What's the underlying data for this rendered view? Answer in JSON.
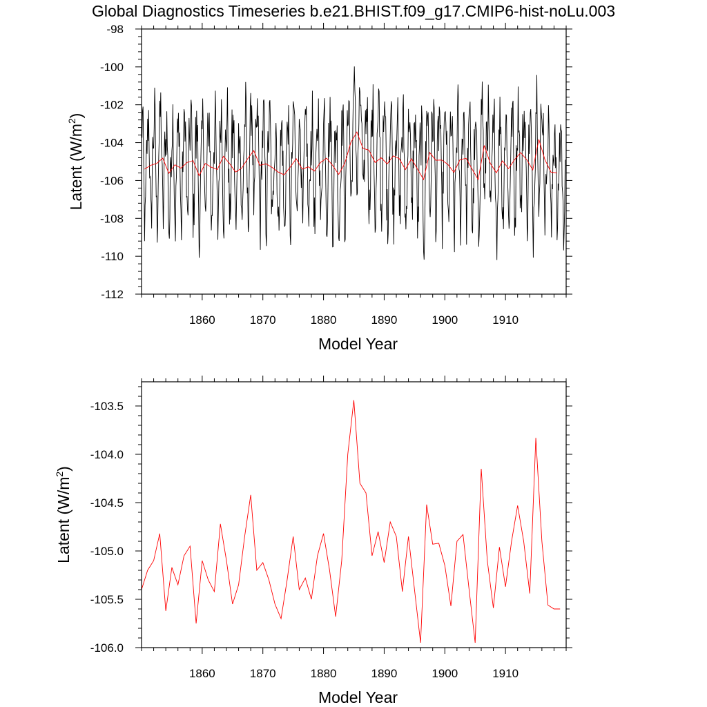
{
  "title": "Global Diagnostics Timeseries b.e21.BHIST.f09_g17.CMIP6-hist-noLu.003",
  "chart_data": [
    {
      "type": "line",
      "xlabel": "Model Year",
      "ylabel_main": "Latent (W/m",
      "ylabel_sup": "2",
      "ylabel_tail": ")",
      "xlim": [
        1850,
        1920
      ],
      "ylim": [
        -112,
        -98
      ],
      "xticks": [
        1860,
        1870,
        1880,
        1890,
        1900,
        1910
      ],
      "xtick_labels": [
        "1860",
        "1870",
        "1880",
        "1890",
        "1900",
        "1910"
      ],
      "yticks": [
        -112,
        -110,
        -108,
        -106,
        -104,
        -102,
        -100,
        -98
      ],
      "ytick_labels": [
        "-112",
        "-110",
        "-108",
        "-106",
        "-104",
        "-102",
        "-100",
        "-98"
      ],
      "series": [
        {
          "kind": "monthly",
          "color": "#000000",
          "x_start": 1850,
          "x_step": 0.0833333,
          "note_values": "monthly values (generated series shape, representative)",
          "values": []
        },
        {
          "kind": "annual",
          "color": "#ff0000",
          "x": [
            1850.5,
            1851.5,
            1852.5,
            1853.5,
            1854.5,
            1855.5,
            1856.5,
            1857.5,
            1858.5,
            1859.5,
            1860.5,
            1861.5,
            1862.5,
            1863.5,
            1864.5,
            1865.5,
            1866.5,
            1867.5,
            1868.5,
            1869.5,
            1870.5,
            1871.5,
            1872.5,
            1873.5,
            1874.5,
            1875.5,
            1876.5,
            1877.5,
            1878.5,
            1879.5,
            1880.5,
            1881.5,
            1882.5,
            1883.5,
            1884.5,
            1885.5,
            1886.5,
            1887.5,
            1888.5,
            1889.5,
            1890.5,
            1891.5,
            1892.5,
            1893.5,
            1894.5,
            1895.5,
            1896.5,
            1897.5,
            1898.5,
            1899.5,
            1900.5,
            1901.5,
            1902.5,
            1903.5,
            1904.5,
            1905.5,
            1906.5,
            1907.5,
            1908.5,
            1909.5,
            1910.5,
            1911.5,
            1912.5,
            1913.5,
            1914.5,
            1915.5,
            1916.5,
            1917.5,
            1918.5
          ],
          "values": [
            -105.4,
            -105.2,
            -105.1,
            -104.82,
            -105.62,
            -105.17,
            -105.35,
            -105.05,
            -104.95,
            -105.75,
            -105.1,
            -105.3,
            -105.42,
            -104.72,
            -105.1,
            -105.55,
            -105.35,
            -104.85,
            -104.42,
            -105.2,
            -105.12,
            -105.3,
            -105.55,
            -105.7,
            -105.3,
            -104.85,
            -105.4,
            -105.28,
            -105.5,
            -105.05,
            -104.82,
            -105.2,
            -105.68,
            -105.1,
            -104.0,
            -103.44,
            -104.3,
            -104.4,
            -105.05,
            -104.8,
            -105.12,
            -104.7,
            -104.85,
            -105.42,
            -104.85,
            -105.4,
            -105.95,
            -104.52,
            -104.93,
            -104.92,
            -105.15,
            -105.57,
            -104.9,
            -104.83,
            -105.4,
            -105.95,
            -104.15,
            -105.1,
            -105.59,
            -104.96,
            -105.37,
            -104.9,
            -104.53,
            -104.9,
            -105.44,
            -103.83,
            -104.9,
            -105.56,
            -105.6
          ]
        }
      ]
    },
    {
      "type": "line",
      "xlabel": "Model Year",
      "ylabel_main": "Latent (W/m",
      "ylabel_sup": "2",
      "ylabel_tail": ")",
      "xlim": [
        1850,
        1920
      ],
      "ylim": [
        -106.0,
        -103.25
      ],
      "xticks": [
        1860,
        1870,
        1880,
        1890,
        1900,
        1910
      ],
      "xtick_labels": [
        "1860",
        "1870",
        "1880",
        "1890",
        "1900",
        "1910"
      ],
      "yticks": [
        -106.0,
        -105.5,
        -105.0,
        -104.5,
        -104.0,
        -103.5
      ],
      "ytick_labels": [
        "-106.0",
        "-105.5",
        "-105.0",
        "-104.5",
        "-104.0",
        "-103.5"
      ],
      "series": [
        {
          "kind": "annual",
          "color": "#ff0000",
          "x": [
            1850.0,
            1851.0,
            1852.0,
            1853.0,
            1854.0,
            1855.0,
            1856.0,
            1857.0,
            1858.0,
            1859.0,
            1860.0,
            1861.0,
            1862.0,
            1863.0,
            1864.0,
            1865.0,
            1866.0,
            1867.0,
            1868.0,
            1869.0,
            1870.0,
            1871.0,
            1872.0,
            1873.0,
            1874.0,
            1875.0,
            1876.0,
            1877.0,
            1878.0,
            1879.0,
            1880.0,
            1881.0,
            1882.0,
            1883.0,
            1884.0,
            1885.0,
            1886.0,
            1887.0,
            1888.0,
            1889.0,
            1890.0,
            1891.0,
            1892.0,
            1893.0,
            1894.0,
            1895.0,
            1896.0,
            1897.0,
            1898.0,
            1899.0,
            1900.0,
            1901.0,
            1902.0,
            1903.0,
            1904.0,
            1905.0,
            1906.0,
            1907.0,
            1908.0,
            1909.0,
            1910.0,
            1911.0,
            1912.0,
            1913.0,
            1914.0,
            1915.0,
            1916.0,
            1917.0,
            1918.0,
            1919.0
          ],
          "values": [
            -105.4,
            -105.2,
            -105.1,
            -104.82,
            -105.62,
            -105.17,
            -105.35,
            -105.05,
            -104.95,
            -105.75,
            -105.1,
            -105.3,
            -105.42,
            -104.72,
            -105.1,
            -105.55,
            -105.35,
            -104.85,
            -104.42,
            -105.2,
            -105.12,
            -105.3,
            -105.55,
            -105.7,
            -105.3,
            -104.85,
            -105.4,
            -105.28,
            -105.5,
            -105.05,
            -104.82,
            -105.2,
            -105.68,
            -105.1,
            -104.0,
            -103.44,
            -104.3,
            -104.4,
            -105.05,
            -104.8,
            -105.12,
            -104.7,
            -104.85,
            -105.42,
            -104.85,
            -105.4,
            -105.95,
            -104.52,
            -104.93,
            -104.92,
            -105.15,
            -105.57,
            -104.9,
            -104.83,
            -105.4,
            -105.95,
            -104.15,
            -105.1,
            -105.59,
            -104.96,
            -105.37,
            -104.9,
            -104.53,
            -104.9,
            -105.44,
            -103.83,
            -104.9,
            -105.56,
            -105.6,
            -105.6
          ]
        }
      ]
    }
  ]
}
